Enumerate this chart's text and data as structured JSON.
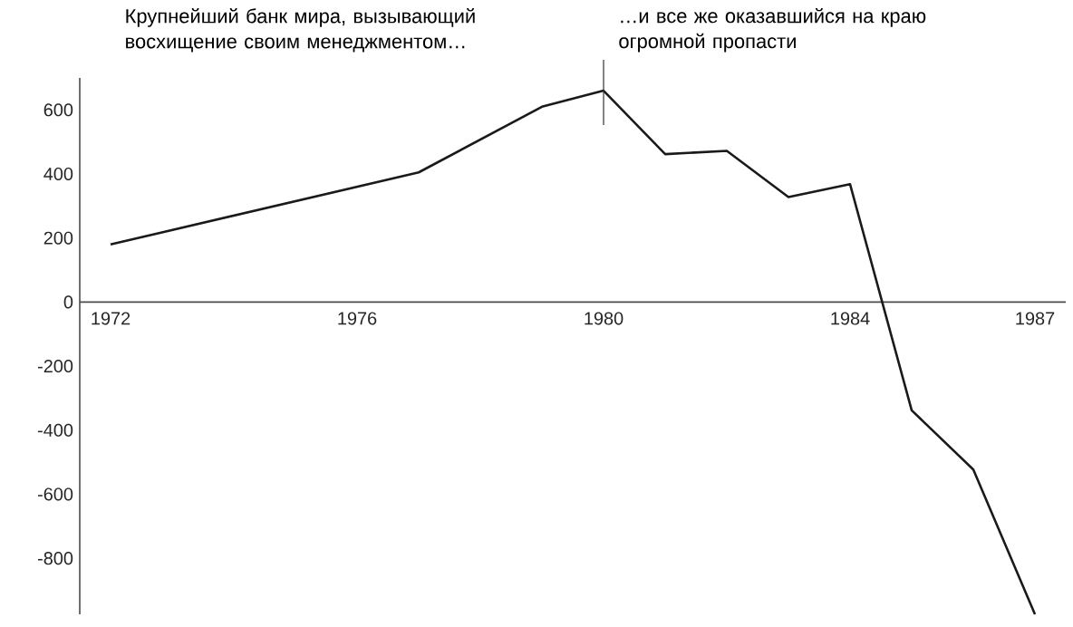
{
  "chart_data": {
    "type": "line",
    "x": [
      1972,
      1977,
      1979,
      1980,
      1981,
      1982,
      1983,
      1984,
      1985,
      1986,
      1987
    ],
    "series": [
      {
        "color": "#1a1a1a",
        "values": [
          180,
          405,
          610,
          660,
          462,
          472,
          328,
          368,
          -338,
          -523,
          -975
        ]
      }
    ],
    "xlim": [
      1971.5,
      1987.5
    ],
    "xticks": [
      1972,
      1976,
      1980,
      1984,
      1987
    ],
    "ylim": [
      -975,
      700
    ],
    "yticks": [
      {
        "value": -800,
        "label": "-800"
      },
      {
        "value": -600,
        "label": "-600"
      },
      {
        "value": -400,
        "label": "-400"
      },
      {
        "value": -200,
        "label": "-200"
      },
      0,
      200,
      400,
      600
    ],
    "grid": false,
    "marker": "none",
    "line_style": "solid",
    "ref_lines": [
      {
        "axis": "x",
        "value": 1980,
        "label": null
      }
    ],
    "annotations": [
      "Крупнейший банк мира, вызывающий восхищение своим менеджментом…",
      "…и все же оказавшийся на краю огромной пропасти"
    ]
  }
}
